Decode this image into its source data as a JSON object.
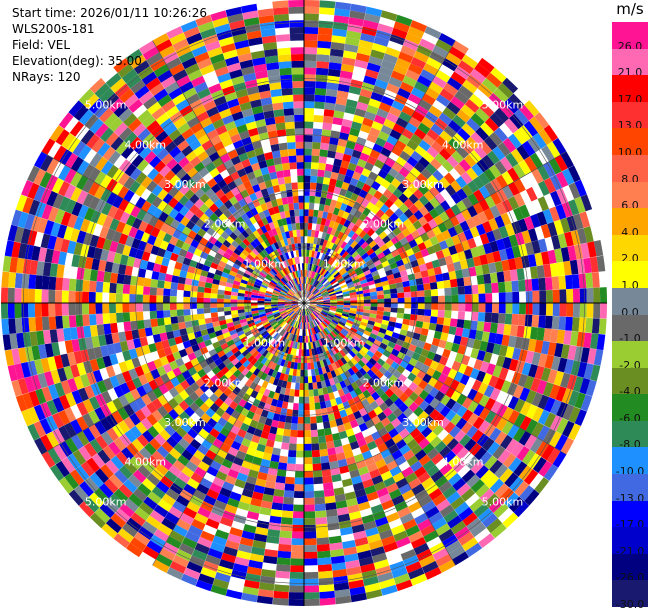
{
  "header": {
    "start_time": "Start time: 2026/01/11 10:26:26",
    "instrument": "WLS200s-181",
    "field": "Field: VEL",
    "elevation": "Elevation(deg): 35.00",
    "nrays": "NRays: 120"
  },
  "colorbar": {
    "unit": "m/s",
    "levels": [
      "26.0",
      "21.0",
      "17.0",
      "13.0",
      "10.0",
      "8.0",
      "6.0",
      "4.0",
      "2.0",
      "1.0",
      "0.0",
      "-1.0",
      "-2.0",
      "-4.0",
      "-6.0",
      "-8.0",
      "-10.0",
      "-13.0",
      "-17.0",
      "-21.0",
      "-26.0",
      "-30.0"
    ],
    "colors": [
      "#ff1493",
      "#ff69b4",
      "#ff0000",
      "#ff3030",
      "#ff4500",
      "#ff6347",
      "#ff7f50",
      "#ffa500",
      "#ffd700",
      "#ffff00",
      "#778899",
      "#696969",
      "#9acd32",
      "#6b8e23",
      "#228b22",
      "#2e8b57",
      "#1e90ff",
      "#4169e1",
      "#0000ff",
      "#0000cd",
      "#000080",
      "#191970"
    ]
  },
  "chart_data": {
    "type": "heatmap",
    "projection": "polar-ppi",
    "field": "VEL",
    "units": "m/s",
    "elevation_deg": 35.0,
    "n_rays": 120,
    "range_rings_km": [
      1.0,
      2.0,
      3.0,
      4.0,
      5.0
    ],
    "ring_labels": [
      "1.00km",
      "2.00km",
      "3.00km",
      "4.00km",
      "5.00km"
    ],
    "max_range_km": 5.4,
    "value_range": [
      -30.0,
      26.0
    ],
    "grid": true
  }
}
